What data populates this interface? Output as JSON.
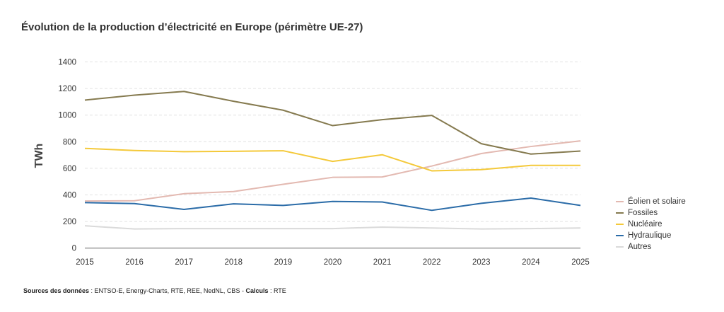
{
  "chart_data": {
    "type": "line",
    "title": "Évolution de la production d’électricité en Europe (périmètre UE-27)",
    "xlabel": "",
    "ylabel": "TWh",
    "x": [
      2015,
      2016,
      2017,
      2018,
      2019,
      2020,
      2021,
      2022,
      2023,
      2024,
      2025
    ],
    "ylim": [
      0,
      1400
    ],
    "yticks": [
      0,
      200,
      400,
      600,
      800,
      1000,
      1200,
      1400
    ],
    "grid": true,
    "legend_position": "right",
    "series": [
      {
        "name": "Éolien et solaire",
        "color": "#e3b9b1",
        "values": [
          354,
          356,
          409,
          425,
          480,
          532,
          535,
          617,
          711,
          764,
          806
        ]
      },
      {
        "name": "Fossiles",
        "color": "#857a4f",
        "values": [
          1113,
          1150,
          1178,
          1104,
          1037,
          921,
          966,
          998,
          785,
          707,
          730
        ]
      },
      {
        "name": "Nucléaire",
        "color": "#f4c93a",
        "values": [
          750,
          734,
          725,
          728,
          732,
          652,
          702,
          581,
          590,
          622,
          622
        ]
      },
      {
        "name": "Hydraulique",
        "color": "#2b6ca8",
        "values": [
          342,
          335,
          291,
          333,
          321,
          351,
          347,
          284,
          337,
          376,
          321
        ]
      },
      {
        "name": "Autres",
        "color": "#dadada",
        "values": [
          168,
          144,
          147,
          147,
          147,
          147,
          158,
          151,
          144,
          147,
          151
        ]
      }
    ]
  },
  "footer": {
    "sources_label": "Sources des données",
    "sources_text": " : ENTSO-E, Energy-Charts, RTE, REE, NedNL, CBS - ",
    "calc_label": "Calculs",
    "calc_text": " : RTE"
  }
}
